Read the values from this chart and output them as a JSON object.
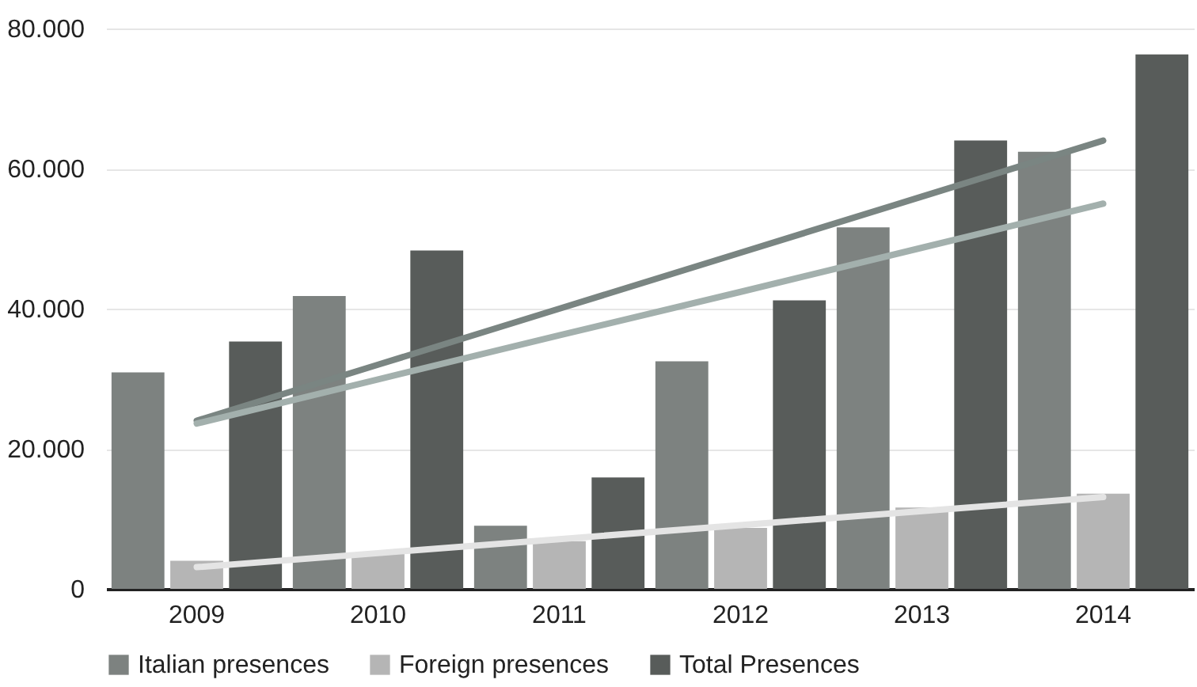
{
  "chart_data": {
    "type": "bar",
    "categories": [
      "2009",
      "2010",
      "2011",
      "2012",
      "2013",
      "2014"
    ],
    "series": [
      {
        "name": "Italian presences",
        "color": "#7d8280",
        "values": [
          30900,
          41800,
          9000,
          32500,
          51600,
          62400
        ]
      },
      {
        "name": "Foreign presences",
        "color": "#b5b5b5",
        "values": [
          4000,
          5000,
          6800,
          8700,
          11600,
          13600
        ]
      },
      {
        "name": "Total Presences",
        "color": "#585c5a",
        "values": [
          35300,
          48300,
          15900,
          41200,
          64000,
          76300
        ]
      },
      {
        "type": "line",
        "color": "#7a8582",
        "values": [
          24000,
          32000,
          40000,
          48000,
          56000,
          64000
        ]
      },
      {
        "type": "line",
        "color": "#a3b0ad",
        "values": [
          23600,
          29900,
          36200,
          42400,
          48700,
          55000
        ]
      },
      {
        "type": "line",
        "color": "#e4e4e4",
        "values": [
          3100,
          5100,
          7100,
          9100,
          11100,
          13100
        ]
      }
    ],
    "ylim": [
      0,
      80000
    ],
    "yticks": [
      {
        "value": 0,
        "label": "0"
      },
      {
        "value": 20000,
        "label": "20.000"
      },
      {
        "value": 40000,
        "label": "40.000"
      },
      {
        "value": 60000,
        "label": "60.000"
      },
      {
        "value": 80000,
        "label": "80.000"
      }
    ],
    "grid": "y",
    "legend": "bottom"
  }
}
